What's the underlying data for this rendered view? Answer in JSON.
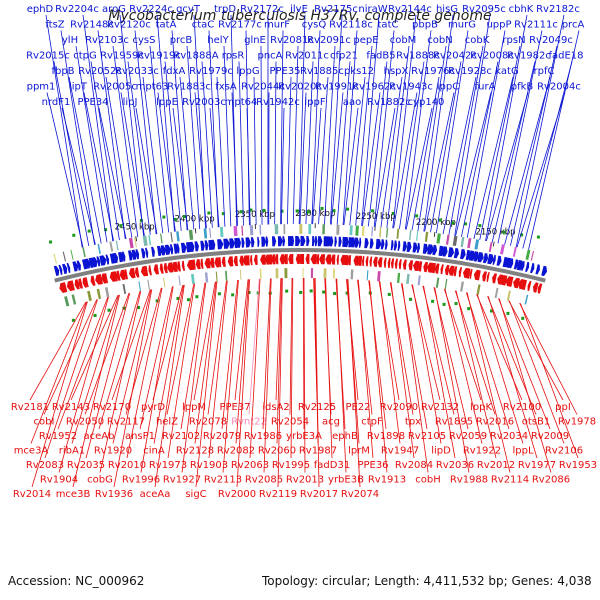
{
  "title": "Mycobacterium tuberculosis H37Rv, complete genome",
  "footer": {
    "accession": "Accession: NC_000962",
    "summary": "Topology: circular; Length: 4,411,532 bp; Genes: 4,038"
  },
  "colors": {
    "forward": "#0a14d2",
    "reverse": "#e60e0e",
    "backbone": "#808080",
    "highlight": "#f58ab8",
    "text": "#111111"
  },
  "ticks": [
    "2450 kbp",
    "2400 kbp",
    "2350 kbp",
    "2300 kbp",
    "2250 kbp",
    "2200 kbp",
    "2150 kbp"
  ],
  "forward_labels": [
    "ephD",
    "Rv2204c",
    "aroG",
    "Rv2224c",
    "gcvT",
    "trpD",
    "Rv2172c",
    "ilvE",
    "Rv2175c",
    "niraW",
    "Rv2144c",
    "hisG",
    "Rv2095c",
    "cbhK",
    "Rv2182c",
    "ftsZ",
    "Rv2148c",
    "Rv2120c",
    "tatA",
    "ctaC",
    "Rv2177c",
    "murF",
    "cysQ",
    "Rv2118c",
    "tatC",
    "pbpB",
    "murG",
    "uppP",
    "Rv2111c",
    "prcA",
    "ylH",
    "Rv2103c",
    "cysS",
    "prcB",
    "helY",
    "glnE",
    "Rv2081c",
    "Rv2091c",
    "pepE",
    "cobM",
    "cobN",
    "cobK",
    "rpsN",
    "Rv2049c",
    "Rv2015c",
    "ctpG",
    "Rv1959c",
    "Rv1919c",
    "Rv1888A",
    "rpsR",
    "pncA",
    "Rv2011c",
    "cfp21",
    "fadB5",
    "Rv1888c",
    "Rv2042c",
    "Rv2008c",
    "Rv1982c",
    "fadE18",
    "fbpB",
    "Rv2052c",
    "Rv2033c",
    "fdxA",
    "Rv1979c",
    "lppG",
    "PPE35",
    "Rv1885c",
    "pks12",
    "hspX",
    "Rv1976c",
    "Rv1928c",
    "katG",
    "rpfC",
    "ppm1",
    "lipT",
    "Rv2005c",
    "mpt63",
    "Rv1883c",
    "fxsA",
    "Rv2044c",
    "Rv2020c",
    "Rv1991c",
    "Rv1962c",
    "Rv1943c",
    "lppC",
    "furA",
    "pfkB",
    "Rv2004c",
    "nrdF1",
    "PPE34",
    "lipJ",
    "lppE",
    "Rv2003c",
    "mpt64",
    "Rv1942c",
    "lppF",
    "aao",
    "Rv1882c",
    "cyp140"
  ],
  "reverse_labels": [
    "Rv2181",
    "Rv2143",
    "Rv2170",
    "pyrD",
    "lppM",
    "PPE37",
    "idsA2",
    "Rv2125",
    "PE22",
    "Rv2090",
    "Rv2132",
    "lppK",
    "Rv2100",
    "ppI",
    "cobI",
    "Rv2050",
    "Rv2117",
    "helZ",
    "Rv2078",
    "Rvnt22",
    "Rv2054",
    "acg",
    "ctpF",
    "tpx",
    "Rv1895",
    "Rv2016",
    "otsB1",
    "Rv1978",
    "Rv1952",
    "aceAb",
    "ansP1",
    "Rv2102",
    "Rv2079",
    "Rv1986",
    "yrbE3A",
    "ephB",
    "Rv1898",
    "Rv2105",
    "Rv2059",
    "Rv2034",
    "Rv2009",
    "mce3A",
    "ribA1",
    "Rv1920",
    "cinA",
    "Rv2128",
    "Rv2082",
    "Rv2060",
    "Rv1987",
    "lprM",
    "Rv1947",
    "lipD",
    "Rv1922",
    "lppL",
    "Rv2106",
    "Rv2083",
    "Rv2035",
    "Rv2010",
    "Rv1973",
    "Rv1903",
    "Rv2063",
    "Rv1995",
    "fadD31",
    "PPE36",
    "Rv2084",
    "Rv2036",
    "Rv2012",
    "Rv1977",
    "Rv1953",
    "Rv1904",
    "cobG",
    "Rv1996",
    "Rv1927",
    "Rv2113",
    "Rv2085",
    "Rv2013",
    "yrbE3B",
    "Rv1913",
    "cobH",
    "Rv1988",
    "Rv2114",
    "Rv2086",
    "Rv2014",
    "mce3B",
    "Rv1936",
    "aceAa",
    "sigC",
    "Rv2000",
    "Rv2119",
    "Rv2017",
    "Rv2074"
  ]
}
